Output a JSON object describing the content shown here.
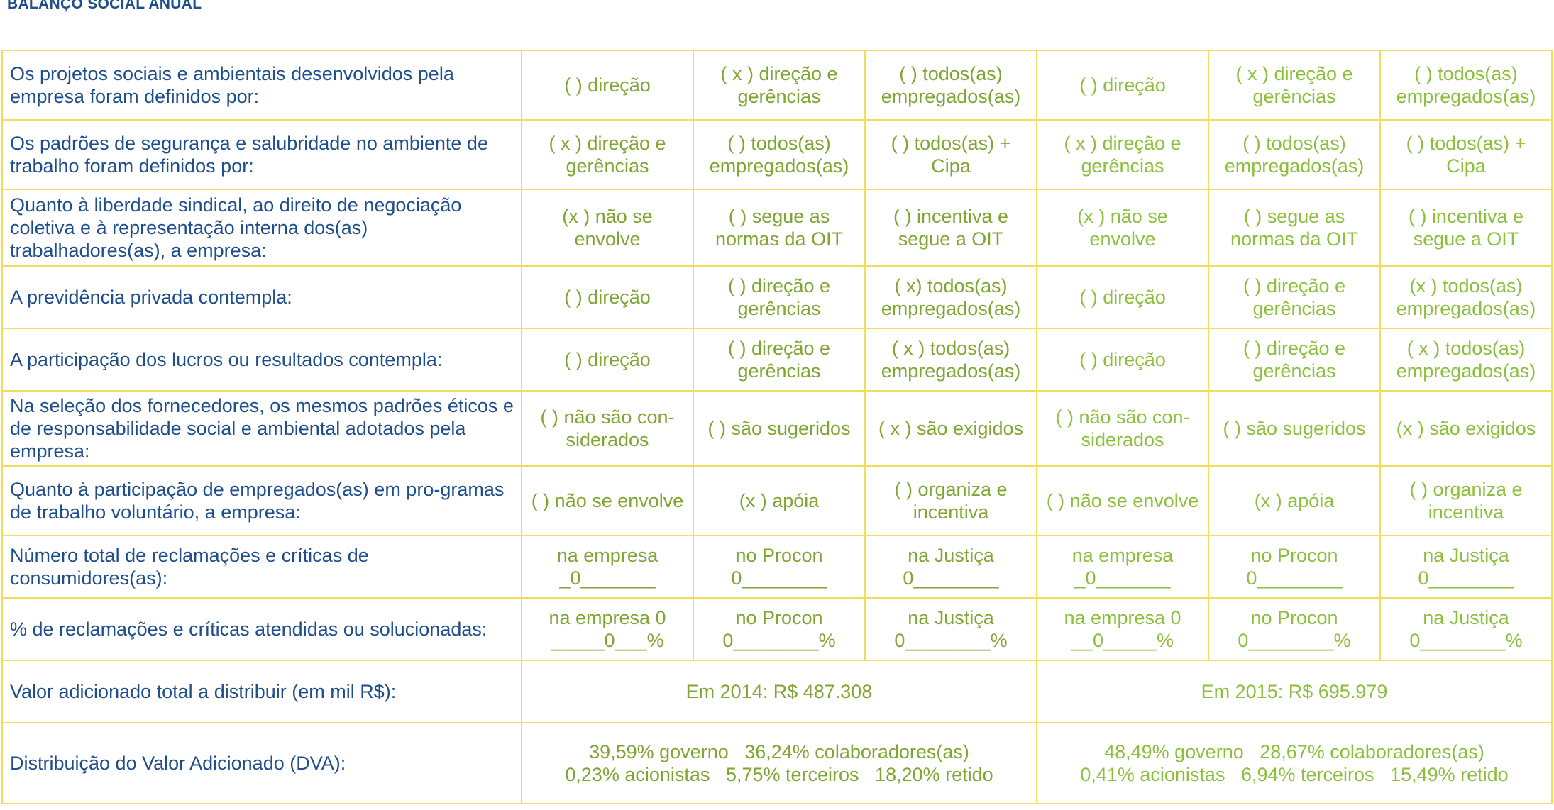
{
  "title": "BALANÇO SOCIAL ANUAL",
  "rows": [
    {
      "question": "Os projetos sociais e ambientais desenvolvidos pela empresa foram definidos por:",
      "y2014": [
        "( ) direção",
        "( x ) direção e gerências",
        "( ) todos(as) empregados(as)"
      ],
      "y2015": [
        "( ) direção",
        "( x ) direção e gerências",
        "( ) todos(as) empregados(as)"
      ]
    },
    {
      "question": "Os padrões de segurança e salubridade no ambiente de trabalho foram definidos por:",
      "y2014": [
        "( x ) direção e gerências",
        "( ) todos(as) empregados(as)",
        "( ) todos(as) + Cipa"
      ],
      "y2015": [
        "( x ) direção e gerências",
        "( ) todos(as) empregados(as)",
        "( ) todos(as) + Cipa"
      ]
    },
    {
      "question": "Quanto à liberdade sindical, ao direito de negociação coletiva e à representação interna dos(as) trabalhadores(as), a empresa:",
      "y2014": [
        "(x ) não se envolve",
        "( ) segue as normas da OIT",
        "( ) incentiva e segue a OIT"
      ],
      "y2015": [
        "(x ) não se envolve",
        "( ) segue as normas da OIT",
        "( ) incentiva e segue a OIT"
      ]
    },
    {
      "question": "A previdência privada contempla:",
      "y2014": [
        "( ) direção",
        "( ) direção e gerências",
        "( x) todos(as) empregados(as)"
      ],
      "y2015": [
        "( ) direção",
        "( ) direção e gerências",
        "(x ) todos(as) empregados(as)"
      ]
    },
    {
      "question": "A participação dos lucros ou resultados contempla:",
      "y2014": [
        "( ) direção",
        "( ) direção e gerências",
        "( x ) todos(as) empregados(as)"
      ],
      "y2015": [
        "( ) direção",
        "( ) direção e gerências",
        "( x ) todos(as) empregados(as)"
      ]
    },
    {
      "question": "Na seleção dos fornecedores, os mesmos padrões éticos e de responsabilidade social e ambiental adotados pela empresa:",
      "y2014": [
        "( ) não são con-siderados",
        "( ) são sugeridos",
        "( x ) são exigidos"
      ],
      "y2015": [
        "( ) não são con-siderados",
        "( ) são sugeridos",
        "(x ) são exigidos"
      ]
    },
    {
      "question": "Quanto à participação de empregados(as) em pro-gramas de trabalho voluntário, a empresa:",
      "y2014": [
        "( ) não se envolve",
        "(x ) apóia",
        "( ) organiza e incentiva"
      ],
      "y2015": [
        "( ) não se envolve",
        "(x ) apóia",
        "( ) organiza e incentiva"
      ]
    },
    {
      "question": "Número total de reclamações e críticas de consumidores(as):",
      "y2014": [
        "na empresa _0_______",
        "no Procon 0________",
        "na Justiça 0________"
      ],
      "y2015": [
        "na empresa _0_______",
        "no Procon 0________",
        "na Justiça 0________"
      ]
    },
    {
      "question": "% de reclamações e críticas atendidas ou solucionadas:",
      "y2014": [
        "na empresa 0 _____0___%",
        "no Procon 0________%",
        "na Justiça 0________%"
      ],
      "y2015": [
        "na empresa 0 __0_____%",
        "no Procon 0________%",
        "na Justiça 0________%"
      ]
    }
  ],
  "valor": {
    "label": "Valor adicionado total a distribuir (em mil R$):",
    "y2014": "Em 2014: R$ 487.308",
    "y2015": "Em 2015: R$ 695.979"
  },
  "dva": {
    "label": "Distribuição do Valor Adicionado (DVA):",
    "y2014_line1": "39,59% governo   36,24% colaboradores(as)",
    "y2014_line2": "0,23% acionistas   5,75% terceiros   18,20% retido",
    "y2015_line1": "48,49% governo   28,67% colaboradores(as)",
    "y2015_line2": "0,41% acionistas   6,94% terceiros   15,49% retido"
  }
}
